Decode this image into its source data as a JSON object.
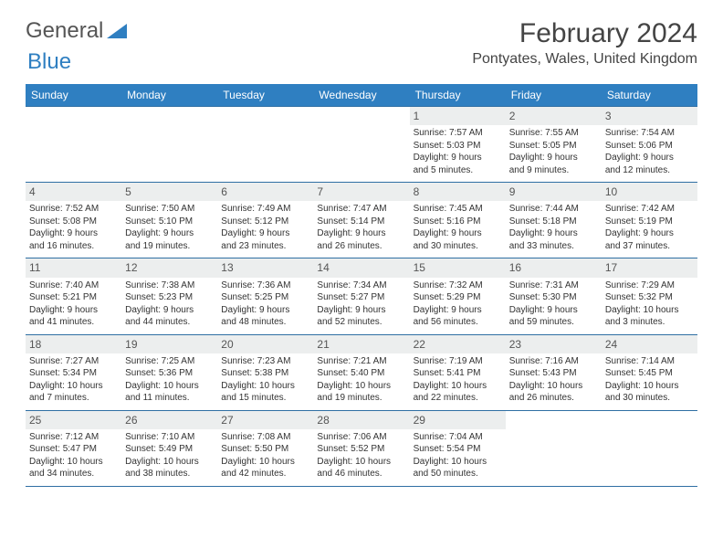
{
  "logo": {
    "text_a": "General",
    "text_b": "Blue"
  },
  "title": "February 2024",
  "location": "Pontyates, Wales, United Kingdom",
  "colors": {
    "header_bg": "#2f7fc1",
    "header_text": "#ffffff",
    "rule": "#2f6fa3",
    "daynum_bg": "#eceeee",
    "text": "#333333",
    "logo_gray": "#555555",
    "logo_blue": "#2f7fc1",
    "background": "#ffffff"
  },
  "fonts": {
    "family": "Arial",
    "title_size_pt": 22,
    "location_size_pt": 12,
    "dow_size_pt": 9,
    "daynum_size_pt": 9,
    "detail_size_pt": 7.5
  },
  "days_of_week": [
    "Sunday",
    "Monday",
    "Tuesday",
    "Wednesday",
    "Thursday",
    "Friday",
    "Saturday"
  ],
  "weeks": [
    [
      {
        "n": "",
        "sr": "",
        "ss": "",
        "dl1": "",
        "dl2": ""
      },
      {
        "n": "",
        "sr": "",
        "ss": "",
        "dl1": "",
        "dl2": ""
      },
      {
        "n": "",
        "sr": "",
        "ss": "",
        "dl1": "",
        "dl2": ""
      },
      {
        "n": "",
        "sr": "",
        "ss": "",
        "dl1": "",
        "dl2": ""
      },
      {
        "n": "1",
        "sr": "Sunrise: 7:57 AM",
        "ss": "Sunset: 5:03 PM",
        "dl1": "Daylight: 9 hours",
        "dl2": "and 5 minutes."
      },
      {
        "n": "2",
        "sr": "Sunrise: 7:55 AM",
        "ss": "Sunset: 5:05 PM",
        "dl1": "Daylight: 9 hours",
        "dl2": "and 9 minutes."
      },
      {
        "n": "3",
        "sr": "Sunrise: 7:54 AM",
        "ss": "Sunset: 5:06 PM",
        "dl1": "Daylight: 9 hours",
        "dl2": "and 12 minutes."
      }
    ],
    [
      {
        "n": "4",
        "sr": "Sunrise: 7:52 AM",
        "ss": "Sunset: 5:08 PM",
        "dl1": "Daylight: 9 hours",
        "dl2": "and 16 minutes."
      },
      {
        "n": "5",
        "sr": "Sunrise: 7:50 AM",
        "ss": "Sunset: 5:10 PM",
        "dl1": "Daylight: 9 hours",
        "dl2": "and 19 minutes."
      },
      {
        "n": "6",
        "sr": "Sunrise: 7:49 AM",
        "ss": "Sunset: 5:12 PM",
        "dl1": "Daylight: 9 hours",
        "dl2": "and 23 minutes."
      },
      {
        "n": "7",
        "sr": "Sunrise: 7:47 AM",
        "ss": "Sunset: 5:14 PM",
        "dl1": "Daylight: 9 hours",
        "dl2": "and 26 minutes."
      },
      {
        "n": "8",
        "sr": "Sunrise: 7:45 AM",
        "ss": "Sunset: 5:16 PM",
        "dl1": "Daylight: 9 hours",
        "dl2": "and 30 minutes."
      },
      {
        "n": "9",
        "sr": "Sunrise: 7:44 AM",
        "ss": "Sunset: 5:18 PM",
        "dl1": "Daylight: 9 hours",
        "dl2": "and 33 minutes."
      },
      {
        "n": "10",
        "sr": "Sunrise: 7:42 AM",
        "ss": "Sunset: 5:19 PM",
        "dl1": "Daylight: 9 hours",
        "dl2": "and 37 minutes."
      }
    ],
    [
      {
        "n": "11",
        "sr": "Sunrise: 7:40 AM",
        "ss": "Sunset: 5:21 PM",
        "dl1": "Daylight: 9 hours",
        "dl2": "and 41 minutes."
      },
      {
        "n": "12",
        "sr": "Sunrise: 7:38 AM",
        "ss": "Sunset: 5:23 PM",
        "dl1": "Daylight: 9 hours",
        "dl2": "and 44 minutes."
      },
      {
        "n": "13",
        "sr": "Sunrise: 7:36 AM",
        "ss": "Sunset: 5:25 PM",
        "dl1": "Daylight: 9 hours",
        "dl2": "and 48 minutes."
      },
      {
        "n": "14",
        "sr": "Sunrise: 7:34 AM",
        "ss": "Sunset: 5:27 PM",
        "dl1": "Daylight: 9 hours",
        "dl2": "and 52 minutes."
      },
      {
        "n": "15",
        "sr": "Sunrise: 7:32 AM",
        "ss": "Sunset: 5:29 PM",
        "dl1": "Daylight: 9 hours",
        "dl2": "and 56 minutes."
      },
      {
        "n": "16",
        "sr": "Sunrise: 7:31 AM",
        "ss": "Sunset: 5:30 PM",
        "dl1": "Daylight: 9 hours",
        "dl2": "and 59 minutes."
      },
      {
        "n": "17",
        "sr": "Sunrise: 7:29 AM",
        "ss": "Sunset: 5:32 PM",
        "dl1": "Daylight: 10 hours",
        "dl2": "and 3 minutes."
      }
    ],
    [
      {
        "n": "18",
        "sr": "Sunrise: 7:27 AM",
        "ss": "Sunset: 5:34 PM",
        "dl1": "Daylight: 10 hours",
        "dl2": "and 7 minutes."
      },
      {
        "n": "19",
        "sr": "Sunrise: 7:25 AM",
        "ss": "Sunset: 5:36 PM",
        "dl1": "Daylight: 10 hours",
        "dl2": "and 11 minutes."
      },
      {
        "n": "20",
        "sr": "Sunrise: 7:23 AM",
        "ss": "Sunset: 5:38 PM",
        "dl1": "Daylight: 10 hours",
        "dl2": "and 15 minutes."
      },
      {
        "n": "21",
        "sr": "Sunrise: 7:21 AM",
        "ss": "Sunset: 5:40 PM",
        "dl1": "Daylight: 10 hours",
        "dl2": "and 19 minutes."
      },
      {
        "n": "22",
        "sr": "Sunrise: 7:19 AM",
        "ss": "Sunset: 5:41 PM",
        "dl1": "Daylight: 10 hours",
        "dl2": "and 22 minutes."
      },
      {
        "n": "23",
        "sr": "Sunrise: 7:16 AM",
        "ss": "Sunset: 5:43 PM",
        "dl1": "Daylight: 10 hours",
        "dl2": "and 26 minutes."
      },
      {
        "n": "24",
        "sr": "Sunrise: 7:14 AM",
        "ss": "Sunset: 5:45 PM",
        "dl1": "Daylight: 10 hours",
        "dl2": "and 30 minutes."
      }
    ],
    [
      {
        "n": "25",
        "sr": "Sunrise: 7:12 AM",
        "ss": "Sunset: 5:47 PM",
        "dl1": "Daylight: 10 hours",
        "dl2": "and 34 minutes."
      },
      {
        "n": "26",
        "sr": "Sunrise: 7:10 AM",
        "ss": "Sunset: 5:49 PM",
        "dl1": "Daylight: 10 hours",
        "dl2": "and 38 minutes."
      },
      {
        "n": "27",
        "sr": "Sunrise: 7:08 AM",
        "ss": "Sunset: 5:50 PM",
        "dl1": "Daylight: 10 hours",
        "dl2": "and 42 minutes."
      },
      {
        "n": "28",
        "sr": "Sunrise: 7:06 AM",
        "ss": "Sunset: 5:52 PM",
        "dl1": "Daylight: 10 hours",
        "dl2": "and 46 minutes."
      },
      {
        "n": "29",
        "sr": "Sunrise: 7:04 AM",
        "ss": "Sunset: 5:54 PM",
        "dl1": "Daylight: 10 hours",
        "dl2": "and 50 minutes."
      },
      {
        "n": "",
        "sr": "",
        "ss": "",
        "dl1": "",
        "dl2": ""
      },
      {
        "n": "",
        "sr": "",
        "ss": "",
        "dl1": "",
        "dl2": ""
      }
    ]
  ]
}
